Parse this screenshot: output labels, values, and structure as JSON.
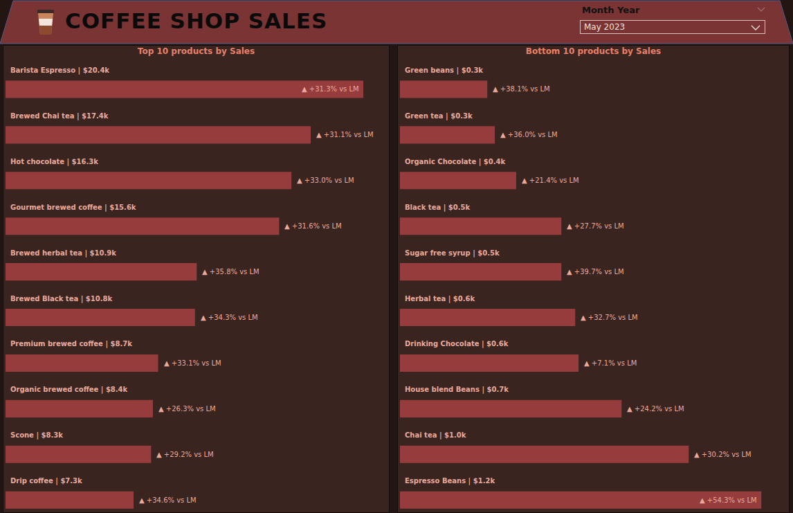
{
  "header": {
    "title": "COFFEE SHOP SALES",
    "filter_label": "Month Year",
    "filter_value": "May 2023"
  },
  "chart_data": [
    {
      "type": "bar",
      "title": "Top 10 products by Sales",
      "orientation": "horizontal",
      "categories": [
        "Barista Espresso | $20.4k",
        "Brewed Chai tea | $17.4k",
        "Hot chocolate | $16.3k",
        "Gourmet brewed coffee | $15.6k",
        "Brewed herbal tea | $10.9k",
        "Brewed Black tea | $10.8k",
        "Premium brewed coffee | $8.7k",
        "Organic brewed coffee | $8.4k",
        "Scone | $8.3k",
        "Drip coffee | $7.3k"
      ],
      "values": [
        20400,
        17400,
        16300,
        15600,
        10900,
        10800,
        8700,
        8400,
        8300,
        7300
      ],
      "annotations": [
        "▲ +31.3% vs LM",
        "▲ +31.1% vs LM",
        "▲ +33.0% vs LM",
        "▲ +31.6% vs LM",
        "▲ +35.8% vs LM",
        "▲ +34.3% vs LM",
        "▲ +33.1% vs LM",
        "▲ +26.3% vs LM",
        "▲ +29.2% vs LM",
        "▲ +34.6% vs LM"
      ],
      "color": "#963c3c",
      "xlim": [
        0,
        21580
      ],
      "tick_labels": false,
      "grid": false
    },
    {
      "type": "bar",
      "title": "Bottom 10 products by Sales",
      "orientation": "horizontal",
      "categories": [
        "Green beans | $0.3k",
        "Green tea | $0.3k",
        "Organic Chocolate | $0.4k",
        "Black tea | $0.5k",
        "Sugar free syrup | $0.5k",
        "Herbal tea | $0.6k",
        "Drinking Chocolate | $0.6k",
        "House blend Beans | $0.7k",
        "Chai tea | $1.0k",
        "Espresso Beans | $1.2k"
      ],
      "values": [
        290,
        315,
        386,
        536,
        536,
        582,
        593,
        736,
        959,
        1200
      ],
      "annotations": [
        "▲ +38.1% vs LM",
        "▲ +36.0% vs LM",
        "▲ +21.4% vs LM",
        "▲ +27.7% vs LM",
        "▲ +39.7% vs LM",
        "▲ +32.7% vs LM",
        "▲ +7.1% vs LM",
        "▲ +24.2% vs LM",
        "▲ +30.2% vs LM",
        "▲ +54.3% vs LM"
      ],
      "color": "#963c3c",
      "xlim": [
        0,
        1280
      ],
      "tick_labels": false,
      "grid": false
    }
  ]
}
